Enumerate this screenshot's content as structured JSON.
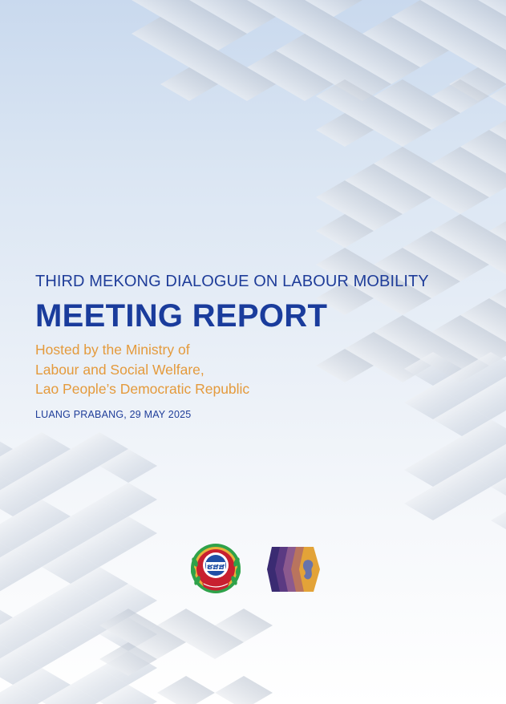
{
  "report": {
    "subtitle": "THIRD MEKONG DIALOGUE ON LABOUR MOBILITY",
    "title": "MEETING REPORT",
    "host_lines": [
      "Hosted by the Ministry of",
      "Labour and Social Welfare,",
      "Lao People’s Democratic Republic"
    ],
    "dateline": "LUANG PRABANG, 29 MAY 2025"
  },
  "logos": {
    "ministry_emblem_text": "ຮສສ",
    "mekong_logo": "mekong-hexagon-logo"
  },
  "colors": {
    "title_blue": "#1a3c9c",
    "host_orange": "#e49a3c",
    "background_top": "#c9d9ee",
    "background_bottom": "#ffffff"
  }
}
